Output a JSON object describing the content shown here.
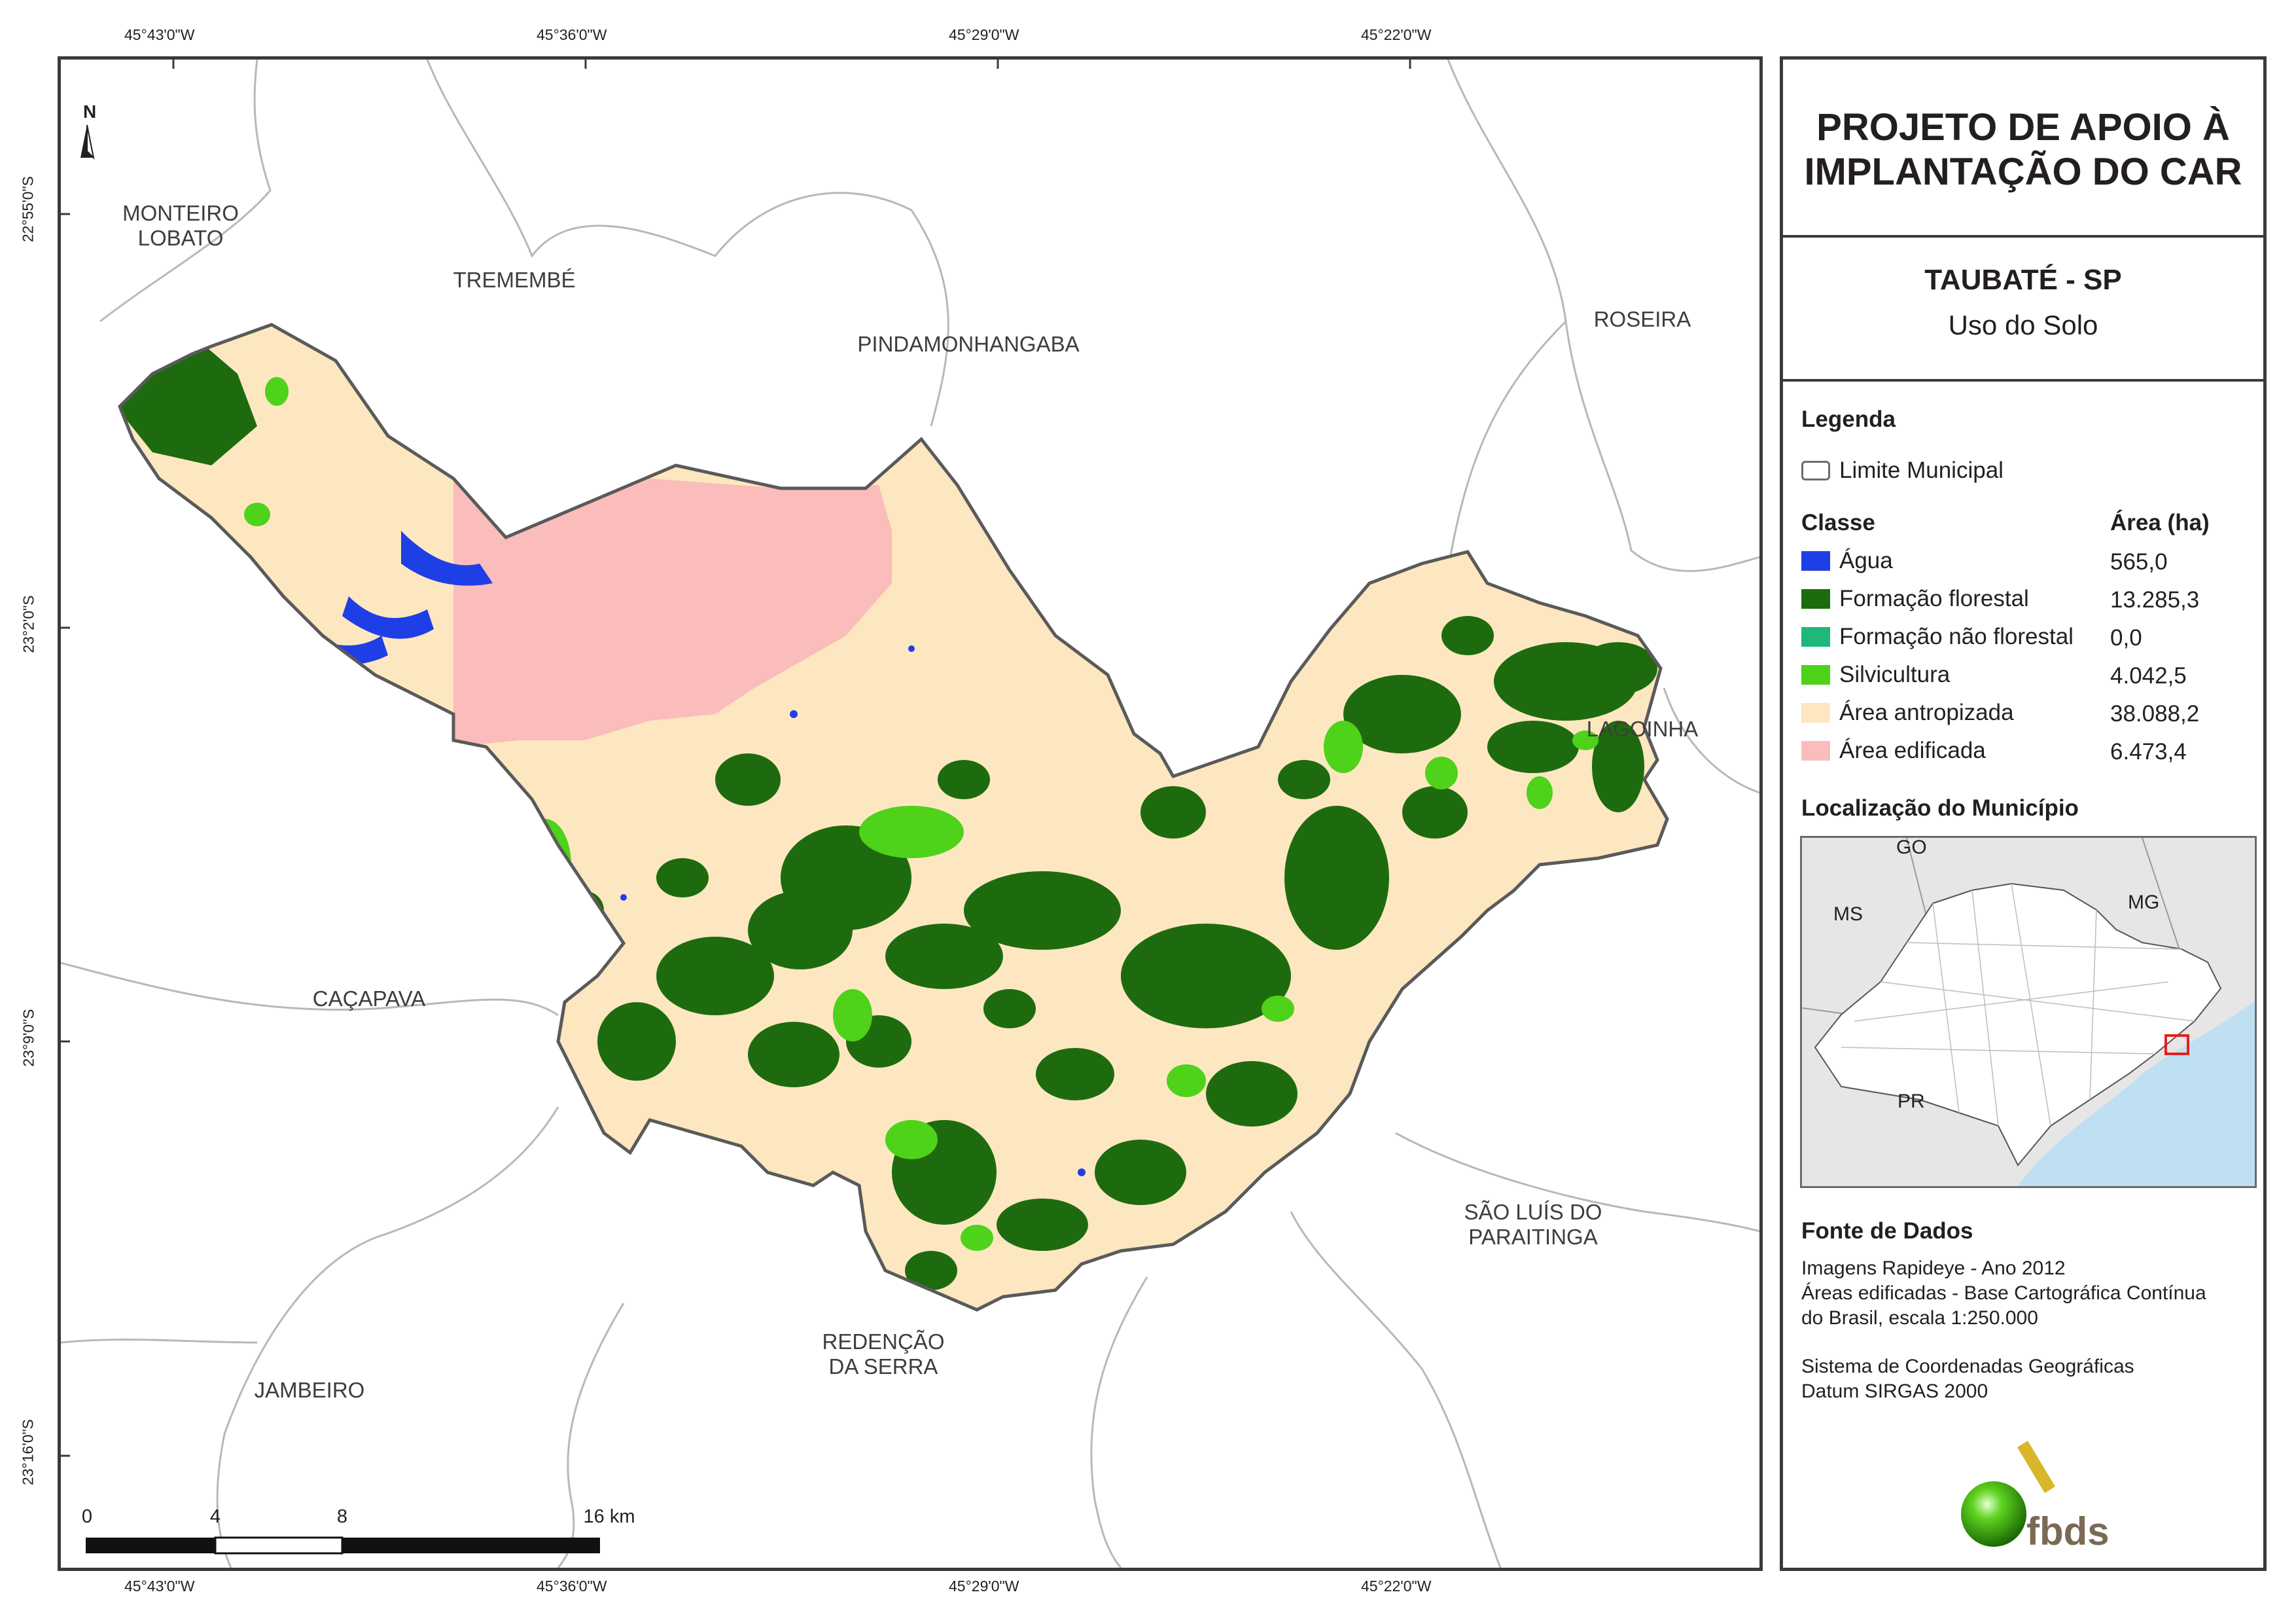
{
  "coords": {
    "top": [
      "45°43'0\"W",
      "45°36'0\"W",
      "45°29'0\"W",
      "45°22'0\"W"
    ],
    "bottom": [
      "45°43'0\"W",
      "45°36'0\"W",
      "45°29'0\"W",
      "45°22'0\"W"
    ],
    "left": [
      "22°55'0\"S",
      "23°2'0\"S",
      "23°9'0\"S",
      "23°16'0\"S"
    ]
  },
  "north": "N",
  "municipalities": {
    "monteiro_lobato": [
      "MONTEIRO",
      "LOBATO"
    ],
    "tremembe": "TREMEMBÉ",
    "pindamonhangaba": "PINDAMONHANGABA",
    "roseira": "ROSEIRA",
    "lagoinha": "LAGOINHA",
    "cacapava": "CAÇAPAVA",
    "sao_luis": [
      "SÃO LUÍS DO",
      "PARAITINGA"
    ],
    "redencao": [
      "REDENÇÃO",
      "DA SERRA"
    ],
    "jambeiro": "JAMBEIRO"
  },
  "scale_bar": {
    "labels": [
      "0",
      "4",
      "8",
      "16 km"
    ]
  },
  "panel": {
    "title_lines": [
      "PROJETO DE APOIO À",
      "IMPLANTAÇÃO DO CAR"
    ],
    "place": "TAUBATÉ - SP",
    "theme": "Uso do Solo",
    "legend_heading": "Legenda",
    "limit_label": "Limite Municipal",
    "class_heading": "Classe",
    "area_heading": "Área (ha)",
    "classes": [
      {
        "label": "Água",
        "area": "565,0",
        "color": "#1f3fe6"
      },
      {
        "label": "Formação florestal",
        "area": "13.285,3",
        "color": "#1e6b0f"
      },
      {
        "label": "Formação não florestal",
        "area": "0,0",
        "color": "#1fb77a"
      },
      {
        "label": "Silvicultura",
        "area": "4.042,5",
        "color": "#4ed21a"
      },
      {
        "label": "Área antropizada",
        "area": "38.088,2",
        "color": "#fce7c0"
      },
      {
        "label": "Área edificada",
        "area": "6.473,4",
        "color": "#fbbcbc"
      }
    ],
    "location_heading": "Localização do Município",
    "inset_labels": {
      "go": "GO",
      "ms": "MS",
      "mg": "MG",
      "pr": "PR"
    },
    "source_heading": "Fonte de Dados",
    "source_lines": [
      "Imagens Rapideye - Ano 2012",
      "Áreas edificadas - Base Cartográfica Contínua",
      "do Brasil, escala 1:250.000"
    ],
    "crs_lines": [
      "Sistema de Coordenadas Geográficas",
      "Datum SIRGAS 2000"
    ],
    "logo_text": "fbds"
  },
  "colors": {
    "water": "#1f3fe6",
    "forest": "#1e6b0f",
    "silv": "#4ed21a",
    "anthro": "#fce7c0",
    "built": "#fbbcbc",
    "border": "#5a5a5a",
    "muni": "#b8b8b8",
    "ocean": "#bfe0f2",
    "inset_bg": "#e6e6e6"
  }
}
